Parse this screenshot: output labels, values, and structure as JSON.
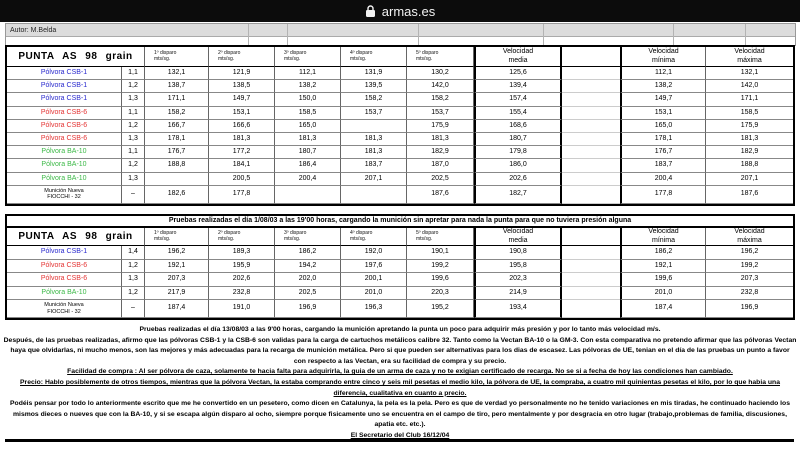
{
  "topbar": {
    "site": "armas.es"
  },
  "author_row": {
    "label": "Autor: M.Belda"
  },
  "colors": {
    "blue": "#2a2ace",
    "red": "#e43434",
    "green": "#3cb947",
    "black": "#000000"
  },
  "columns": {
    "shot_headers": [
      "1º disparo\nmts/sg.",
      "2º disparo\nmts/sg.",
      "3º disparo\nmts/sg.",
      "4º disparo\nmts/sg.",
      "5º disparo\nmts/sg."
    ],
    "media": "Velocidad\nmedia",
    "minima": "Velocidad\nmínima",
    "maxima": "Velocidad\nmáxima"
  },
  "tables": [
    {
      "title": "PUNTA AS 98 grain",
      "note": null,
      "rows": [
        {
          "label": "Pólvora CSB-1",
          "color": "blue",
          "charge": "1,1",
          "shots": [
            "132,1",
            "121,9",
            "112,1",
            "131,9",
            "130,2"
          ],
          "media": "125,6",
          "min": "112,1",
          "max": "132,1"
        },
        {
          "label": "Pólvora CSB-1",
          "color": "blue",
          "charge": "1,2",
          "shots": [
            "138,7",
            "138,5",
            "138,2",
            "139,5",
            "142,0"
          ],
          "media": "139,4",
          "min": "138,2",
          "max": "142,0"
        },
        {
          "label": "Pólvora CSB-1",
          "color": "blue",
          "charge": "1,3",
          "shots": [
            "171,1",
            "149,7",
            "150,0",
            "158,2",
            "158,2"
          ],
          "media": "157,4",
          "min": "149,7",
          "max": "171,1"
        },
        {
          "label": "Pólvora CSB-6",
          "color": "red",
          "charge": "1,1",
          "shots": [
            "158,2",
            "153,1",
            "158,5",
            "153,7",
            "153,7"
          ],
          "media": "155,4",
          "min": "153,1",
          "max": "158,5"
        },
        {
          "label": "Pólvora CSB-6",
          "color": "red",
          "charge": "1,2",
          "shots": [
            "166,7",
            "166,6",
            "165,0",
            "",
            "175,9"
          ],
          "media": "168,6",
          "min": "165,0",
          "max": "175,9"
        },
        {
          "label": "Pólvora CSB-6",
          "color": "red",
          "charge": "1,3",
          "shots": [
            "178,1",
            "181,3",
            "181,3",
            "181,3",
            "181,3"
          ],
          "media": "180,7",
          "min": "178,1",
          "max": "181,3"
        },
        {
          "label": "Pólvora BA-10",
          "color": "green",
          "charge": "1,1",
          "shots": [
            "176,7",
            "177,2",
            "180,7",
            "181,3",
            "182,9"
          ],
          "media": "179,8",
          "min": "176,7",
          "max": "182,9"
        },
        {
          "label": "Pólvora BA-10",
          "color": "green",
          "charge": "1,2",
          "shots": [
            "188,8",
            "184,1",
            "186,4",
            "183,7",
            "187,0"
          ],
          "media": "186,0",
          "min": "183,7",
          "max": "188,8"
        },
        {
          "label": "Pólvora BA-10",
          "color": "green",
          "charge": "1,3",
          "shots": [
            "",
            "200,5",
            "200,4",
            "207,1",
            "202,5"
          ],
          "media": "202,6",
          "min": "200,4",
          "max": "207,1"
        },
        {
          "label": "Munición Nueva\nFIOCCHI - 32",
          "color": "black",
          "small": true,
          "charge": "–",
          "shots": [
            "182,6",
            "177,8",
            "",
            "",
            "187,6"
          ],
          "media": "182,7",
          "min": "177,8",
          "max": "187,6"
        }
      ]
    },
    {
      "title": "PUNTA AS 98 grain",
      "note": "Pruebas realizadas el día 1/08/03 a las 19'00 horas, cargando la munición sin apretar para nada la punta para que no tuviera presión alguna",
      "rows": [
        {
          "label": "Pólvora CSB-1",
          "color": "blue",
          "charge": "1,4",
          "shots": [
            "196,2",
            "189,3",
            "186,2",
            "192,0",
            "190,1"
          ],
          "media": "190,8",
          "min": "186,2",
          "max": "196,2"
        },
        {
          "label": "Pólvora CSB-6",
          "color": "red",
          "charge": "1,2",
          "shots": [
            "192,1",
            "195,9",
            "194,2",
            "197,6",
            "199,2"
          ],
          "media": "195,8",
          "min": "192,1",
          "max": "199,2"
        },
        {
          "label": "Pólvora CSB-6",
          "color": "red",
          "charge": "1,3",
          "shots": [
            "207,3",
            "202,6",
            "202,0",
            "200,1",
            "199,6"
          ],
          "media": "202,3",
          "min": "199,6",
          "max": "207,3"
        },
        {
          "label": "Pólvora BA-10",
          "color": "green",
          "charge": "1,2",
          "shots": [
            "217,9",
            "232,8",
            "202,5",
            "201,0",
            "220,3"
          ],
          "media": "214,9",
          "min": "201,0",
          "max": "232,8"
        },
        {
          "label": "Munición Nueva\nFIOCCHI - 32",
          "color": "black",
          "small": true,
          "charge": "–",
          "shots": [
            "187,4",
            "191,0",
            "196,9",
            "196,3",
            "195,2"
          ],
          "media": "193,4",
          "min": "187,4",
          "max": "196,9"
        }
      ]
    }
  ],
  "footer": {
    "lines": [
      {
        "u": false,
        "t": "Pruebas realizadas el día 13/08/03 a las 9'00 horas, cargando la munición  apretando la punta un poco para adquirir más presión y por lo tanto más velocidad  m/s."
      },
      {
        "u": false,
        "t": "Después, de las pruebas realizadas, afirmo que las pólvoras CSB-1 y la CSB-6 son validas para la carga de cartuchos metálicos calibre 32. Tanto como la Vectan BA-10 o la GM-3. Con esta comparativa no pretendo afirmar que las pólvoras Vectan"
      },
      {
        "u": false,
        "t": "haya que olvidarlas, ni mucho menos, son las mejores y más adecuadas para la recarga de munición metálica. Pero si que pueden ser alternativas para los dias de escasez. Las pólvoras de UE, tenian en el día de las pruebas un punto a favor"
      },
      {
        "u": false,
        "t": "con respecto a las Vectan, era su facilidad de compra y su precio."
      },
      {
        "u": true,
        "t": "Facilidad de compra : Al ser pólvora de caza, solamente te hacia falta para adquirirla, la guia de un arma de caza y no te exigian certificado de recarga. No se si a fecha de hoy las condiciones han cambiado."
      },
      {
        "u": true,
        "t": "Precio: Hablo posiblemente de otros tiempos, mientras que la pólvora Vectan, la estaba comprando entre cinco y seis mil pesetas el medio kilo, la pólvora de UE, la compraba, a cuatro mil quinientas pesetas el kilo, por lo que habia una"
      },
      {
        "u": true,
        "t": "diferencia, cualitativa en cuanto a precio."
      },
      {
        "u": false,
        "t": "Podéis pensar por todo lo anteriormente escrito que me he convertido en un pesetero, como dicen en Catalunya, la pela es la pela. Pero es que de verdad yo personalmente no he tenido variaciones en mis tiradas, he continuado haciendo los"
      },
      {
        "u": false,
        "t": "mismos dieces o nueves que con la BA-10, y si se escapa algún disparo al ocho, siempre porque fisicamente uno se encuentra en el campo de tiro, pero mentalmente y por desgracia en otro lugar (trabajo,problemas de familia, discusiones,"
      },
      {
        "u": false,
        "t": "apatia etc. etc.)."
      },
      {
        "u": true,
        "t": "El Secretario del Club 16/12/04"
      }
    ]
  }
}
